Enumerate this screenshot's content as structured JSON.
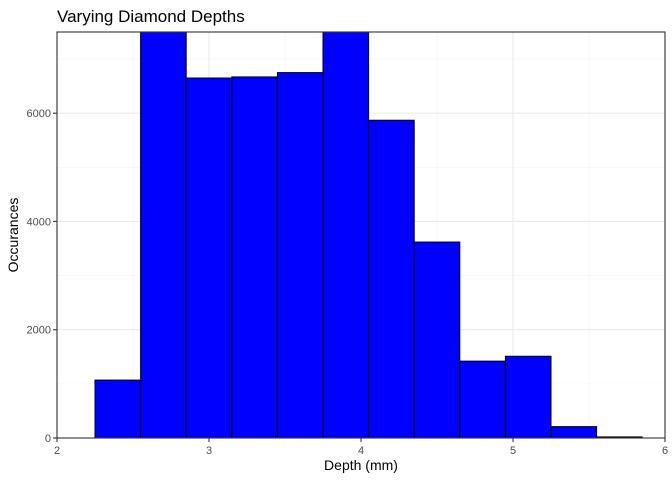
{
  "chart_data": {
    "type": "bar",
    "title": "Varying Diamond Depths",
    "xlabel": "Depth (mm)",
    "ylabel": "Occurances",
    "xlim": [
      2,
      6
    ],
    "ylim": [
      0,
      7500
    ],
    "x_ticks": [
      2,
      3,
      4,
      5,
      6
    ],
    "y_ticks": [
      0,
      2000,
      4000,
      6000
    ],
    "grid": true,
    "bar_color": "#0000ff",
    "bar_outline": "#000000",
    "bins": [
      {
        "x0": 2.25,
        "x1": 2.55,
        "count": 1070
      },
      {
        "x0": 2.55,
        "x1": 2.85,
        "count": 7500
      },
      {
        "x0": 2.85,
        "x1": 3.15,
        "count": 6650
      },
      {
        "x0": 3.15,
        "x1": 3.45,
        "count": 6670
      },
      {
        "x0": 3.45,
        "x1": 3.75,
        "count": 6750
      },
      {
        "x0": 3.75,
        "x1": 4.05,
        "count": 7500
      },
      {
        "x0": 4.05,
        "x1": 4.35,
        "count": 5870
      },
      {
        "x0": 4.35,
        "x1": 4.65,
        "count": 3620
      },
      {
        "x0": 4.65,
        "x1": 4.95,
        "count": 1420
      },
      {
        "x0": 4.95,
        "x1": 5.25,
        "count": 1510
      },
      {
        "x0": 5.25,
        "x1": 5.55,
        "count": 210
      },
      {
        "x0": 5.55,
        "x1": 5.85,
        "count": 20
      }
    ]
  }
}
